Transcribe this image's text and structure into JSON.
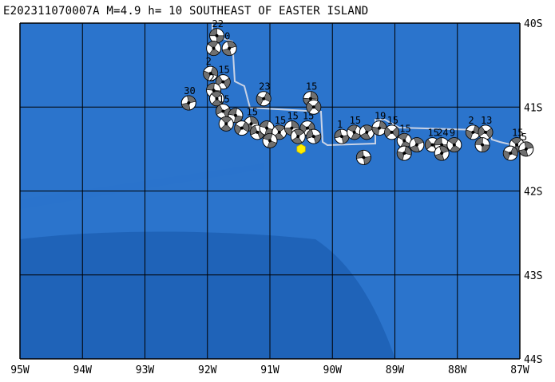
{
  "title": "E202311070007A M=4.9 h= 10 SOUTHEAST OF EASTER ISLAND",
  "lon_labels": [
    "95W",
    "94W",
    "93W",
    "92W",
    "91W",
    "90W",
    "89W",
    "88W",
    "87W"
  ],
  "lat_labels": [
    "40S",
    "41S",
    "42S",
    "43S",
    "44S"
  ],
  "colors": {
    "ocean_deep": "#1f63b8",
    "ocean_shallow": "#2b74cc",
    "grid": "#000000",
    "plate_boundary": "#c9d3e6",
    "epicenter": "#ffee00",
    "mech_dark": "#707070"
  },
  "epicenter": {
    "lon": -90.5,
    "lat": -41.5
  },
  "mechanisms": [
    {
      "lon": -91.85,
      "lat": -40.15,
      "label": "22"
    },
    {
      "lon": -91.9,
      "lat": -40.3,
      "label": ""
    },
    {
      "lon": -91.65,
      "lat": -40.3,
      "label": "0"
    },
    {
      "lon": -91.95,
      "lat": -40.6,
      "label": "2"
    },
    {
      "lon": -91.75,
      "lat": -40.7,
      "label": "15"
    },
    {
      "lon": -91.9,
      "lat": -40.8,
      "label": "2"
    },
    {
      "lon": -91.85,
      "lat": -40.9,
      "label": ""
    },
    {
      "lon": -92.3,
      "lat": -40.95,
      "label": "30"
    },
    {
      "lon": -91.1,
      "lat": -40.9,
      "label": "23"
    },
    {
      "lon": -91.75,
      "lat": -41.05,
      "label": "15"
    },
    {
      "lon": -91.55,
      "lat": -41.1,
      "label": ""
    },
    {
      "lon": -91.7,
      "lat": -41.2,
      "label": ""
    },
    {
      "lon": -91.3,
      "lat": -41.2,
      "label": "15"
    },
    {
      "lon": -91.45,
      "lat": -41.25,
      "label": ""
    },
    {
      "lon": -91.2,
      "lat": -41.3,
      "label": ""
    },
    {
      "lon": -91.05,
      "lat": -41.25,
      "label": ""
    },
    {
      "lon": -90.85,
      "lat": -41.3,
      "label": "15"
    },
    {
      "lon": -90.65,
      "lat": -41.25,
      "label": "15"
    },
    {
      "lon": -90.4,
      "lat": -41.25,
      "label": "15"
    },
    {
      "lon": -90.3,
      "lat": -41.35,
      "label": ""
    },
    {
      "lon": -91.0,
      "lat": -41.4,
      "label": ""
    },
    {
      "lon": -90.55,
      "lat": -41.35,
      "label": ""
    },
    {
      "lon": -90.35,
      "lat": -40.9,
      "label": "15"
    },
    {
      "lon": -90.3,
      "lat": -41.0,
      "label": ""
    },
    {
      "lon": -89.85,
      "lat": -41.35,
      "label": "1"
    },
    {
      "lon": -89.65,
      "lat": -41.3,
      "label": "15"
    },
    {
      "lon": -89.45,
      "lat": -41.3,
      "label": ""
    },
    {
      "lon": -89.25,
      "lat": -41.25,
      "label": "19"
    },
    {
      "lon": -89.05,
      "lat": -41.3,
      "label": "15"
    },
    {
      "lon": -89.5,
      "lat": -41.6,
      "label": ""
    },
    {
      "lon": -88.85,
      "lat": -41.4,
      "label": "15"
    },
    {
      "lon": -88.65,
      "lat": -41.45,
      "label": ""
    },
    {
      "lon": -88.85,
      "lat": -41.55,
      "label": ""
    },
    {
      "lon": -88.4,
      "lat": -41.45,
      "label": "15"
    },
    {
      "lon": -88.25,
      "lat": -41.45,
      "label": "24"
    },
    {
      "lon": -88.05,
      "lat": -41.45,
      "label": "9"
    },
    {
      "lon": -88.25,
      "lat": -41.55,
      "label": ""
    },
    {
      "lon": -87.75,
      "lat": -41.3,
      "label": "2"
    },
    {
      "lon": -87.55,
      "lat": -41.3,
      "label": "13"
    },
    {
      "lon": -87.6,
      "lat": -41.45,
      "label": ""
    },
    {
      "lon": -87.05,
      "lat": -41.45,
      "label": "15"
    },
    {
      "lon": -86.9,
      "lat": -41.5,
      "label": "5"
    },
    {
      "lon": -87.15,
      "lat": -41.55,
      "label": ""
    }
  ]
}
